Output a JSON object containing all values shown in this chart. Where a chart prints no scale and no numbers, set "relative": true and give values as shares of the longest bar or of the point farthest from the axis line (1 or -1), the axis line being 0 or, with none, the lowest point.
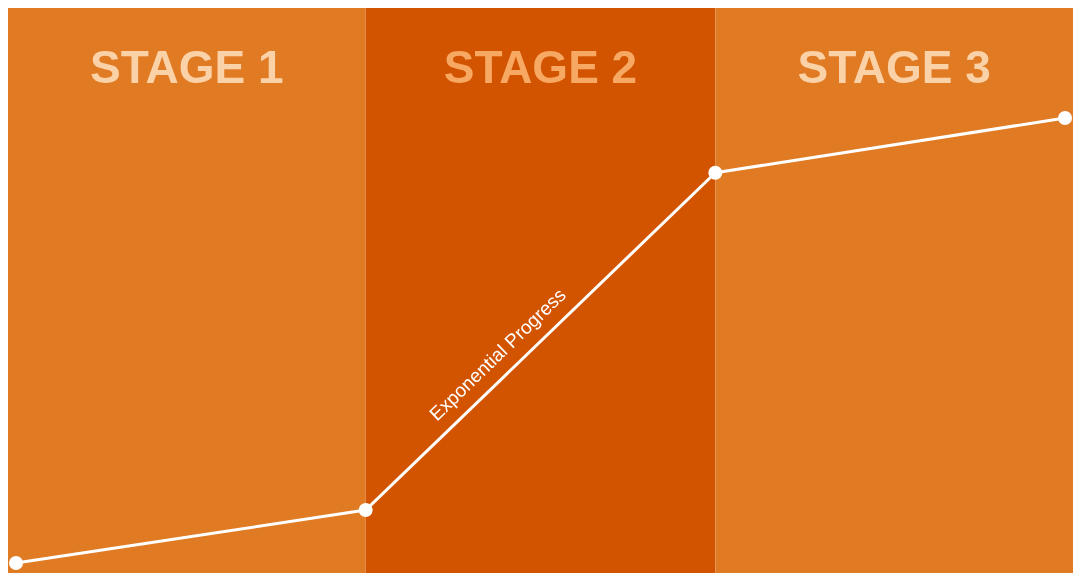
{
  "chart_data": {
    "type": "line",
    "relative": true,
    "categories": [
      null,
      null,
      null,
      null
    ],
    "marker": "circle",
    "line_style": "solid",
    "series": [
      {
        "color": "#ffffff",
        "values": [
          0,
          0.119,
          0.877,
          1
        ]
      }
    ],
    "annotations": [
      "STAGE 1",
      "STAGE 2",
      "STAGE 3",
      "Exponential Progress"
    ]
  }
}
